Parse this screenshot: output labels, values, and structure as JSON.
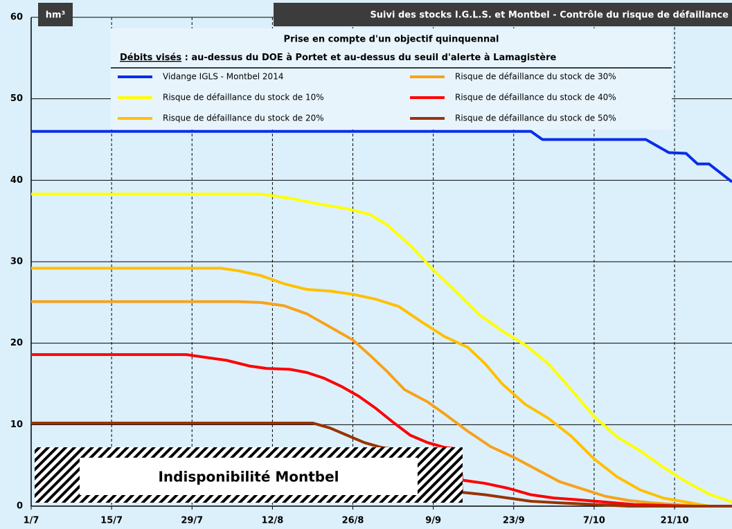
{
  "chart_data": {
    "type": "line",
    "title": "Suivi des stocks I.G.L.S. et Montbel - Contrôle du risque de défaillance",
    "y_unit": "hm³",
    "subtitle": "Prise en compte d'un objectif quinquennal",
    "note_heading": "Débits visés",
    "note": " : au-dessus du DOE à Portet et au-dessus du seuil d'alerte à Lamagistère",
    "annotation": "Indisponibilité Montbel",
    "xlim": [
      0,
      122
    ],
    "xticks": [
      {
        "value": 0,
        "label": "1/7"
      },
      {
        "value": 14,
        "label": "15/7"
      },
      {
        "value": 28,
        "label": "29/7"
      },
      {
        "value": 42,
        "label": "12/8"
      },
      {
        "value": 56,
        "label": "26/8"
      },
      {
        "value": 70,
        "label": "9/9"
      },
      {
        "value": 84,
        "label": "23/9"
      },
      {
        "value": 98,
        "label": "7/10"
      },
      {
        "value": 112,
        "label": "21/10"
      }
    ],
    "ylim": [
      0,
      60
    ],
    "yticks": [
      0,
      10,
      20,
      30,
      40,
      50,
      60
    ],
    "grid": true,
    "series": [
      {
        "name": "Vidange IGLS - Montbel 2014",
        "color": "#0a2ee8",
        "x": [
          0,
          87,
          89,
          107,
          111,
          114,
          116,
          118,
          122
        ],
        "values": [
          46,
          46,
          45,
          45,
          43.4,
          43.3,
          42,
          42,
          39.8
        ]
      },
      {
        "name": "Risque de défaillance du stock de 10%",
        "color": "#ffff00",
        "x": [
          0,
          40,
          45,
          50,
          55,
          59,
          62,
          66,
          70,
          74,
          78,
          82,
          86,
          90,
          94,
          98,
          102,
          106,
          110,
          114,
          118,
          122
        ],
        "values": [
          38.3,
          38.3,
          37.8,
          37.1,
          36.5,
          35.8,
          34.5,
          32,
          29,
          26.3,
          23.5,
          21.5,
          19.8,
          17.5,
          14.3,
          11,
          8.5,
          6.8,
          4.8,
          3,
          1.5,
          0.5
        ]
      },
      {
        "name": "Risque de défaillance du stock de 20%",
        "color": "#ffc000",
        "x": [
          0,
          33,
          36,
          40,
          44,
          48,
          52,
          56,
          60,
          64,
          68,
          72,
          76,
          79,
          82,
          86,
          90,
          94,
          98,
          102,
          106,
          110,
          114,
          118,
          122
        ],
        "values": [
          29.2,
          29.2,
          28.9,
          28.3,
          27.3,
          26.6,
          26.4,
          26,
          25.4,
          24.5,
          22.6,
          20.8,
          19.5,
          17.5,
          15,
          12.5,
          10.8,
          8.6,
          5.8,
          3.6,
          2,
          1,
          0.5,
          0,
          0
        ]
      },
      {
        "name": "Risque de défaillance du stock de 30%",
        "color": "#f7a21b",
        "x": [
          0,
          36,
          40,
          44,
          48,
          52,
          56,
          59,
          62,
          65,
          69,
          72,
          76,
          80,
          84,
          88,
          92,
          96,
          100,
          104,
          108,
          112,
          116,
          122
        ],
        "values": [
          25.1,
          25.1,
          25,
          24.6,
          23.6,
          22,
          20.4,
          18.5,
          16.5,
          14.3,
          12.8,
          11.3,
          9.2,
          7.3,
          6,
          4.5,
          3,
          2.1,
          1.2,
          0.7,
          0.4,
          0.2,
          0,
          0
        ]
      },
      {
        "name": "Risque de défaillance du stock de 40%",
        "color": "#ff0000",
        "x": [
          0,
          27,
          30,
          34,
          38,
          41,
          45,
          48,
          51,
          54,
          57,
          60,
          63,
          66,
          69,
          72,
          74.5,
          75,
          79,
          83,
          87,
          91,
          95,
          100,
          105,
          110,
          115,
          122
        ],
        "values": [
          18.6,
          18.6,
          18.3,
          17.9,
          17.2,
          16.9,
          16.8,
          16.4,
          15.7,
          14.7,
          13.5,
          12,
          10.3,
          8.7,
          7.8,
          7.2,
          7,
          3.2,
          2.8,
          2.2,
          1.4,
          1,
          0.8,
          0.5,
          0.2,
          0.1,
          0,
          0
        ]
      },
      {
        "name": "Risque de défaillance du stock de 50%",
        "color": "#993300",
        "x": [
          0,
          49,
          52,
          55,
          58,
          61,
          65,
          70,
          74.5,
          75,
          79,
          83,
          87,
          92,
          98,
          104,
          122
        ],
        "values": [
          10.2,
          10.2,
          9.6,
          8.7,
          7.8,
          7.2,
          6.8,
          6.2,
          5.8,
          1.7,
          1.4,
          1,
          0.6,
          0.4,
          0.2,
          0,
          0
        ]
      }
    ]
  }
}
